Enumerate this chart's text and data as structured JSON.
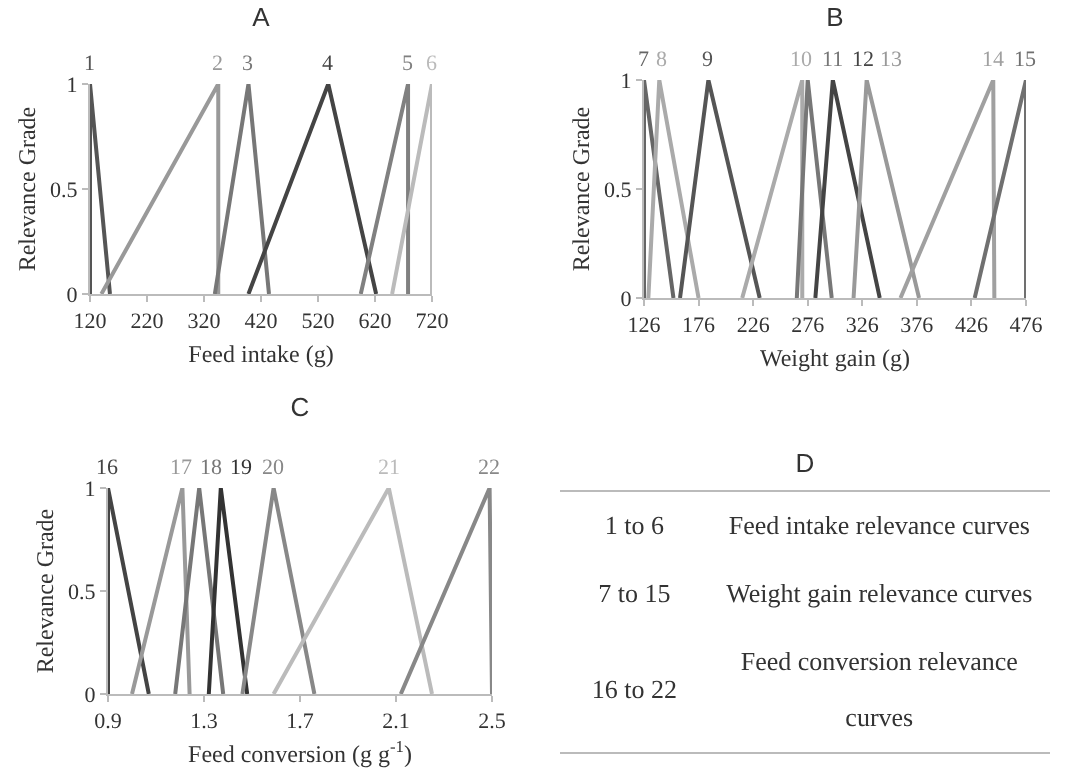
{
  "chart_data": [
    {
      "type": "line",
      "title": "A",
      "xlabel": "Feed intake (g)",
      "ylabel": "Relevance Grade",
      "xlim": [
        120,
        720
      ],
      "xticks": [
        120,
        220,
        320,
        420,
        520,
        620,
        720
      ],
      "ylim": [
        0,
        1
      ],
      "yticks": [
        0,
        0.5,
        1
      ],
      "series": [
        {
          "name": "1",
          "color": "#555555",
          "x": [
            120,
            120,
            155
          ],
          "values": [
            0,
            1,
            0
          ]
        },
        {
          "name": "2",
          "color": "#999999",
          "x": [
            140,
            345,
            345
          ],
          "values": [
            0,
            1,
            0
          ]
        },
        {
          "name": "3",
          "color": "#777777",
          "x": [
            339,
            398,
            434
          ],
          "values": [
            0,
            1,
            0
          ]
        },
        {
          "name": "4",
          "color": "#444444",
          "x": [
            398,
            538,
            622
          ],
          "values": [
            0,
            1,
            0
          ]
        },
        {
          "name": "5",
          "color": "#808080",
          "x": [
            595,
            678,
            678
          ],
          "values": [
            0,
            1,
            0
          ]
        },
        {
          "name": "6",
          "color": "#bbbbbb",
          "x": [
            650,
            720,
            720
          ],
          "values": [
            0,
            1,
            0
          ]
        }
      ]
    },
    {
      "type": "line",
      "title": "B",
      "xlabel": "Weight gain (g)",
      "ylabel": "Relevance Grade",
      "xlim": [
        126,
        476
      ],
      "xticks": [
        126,
        176,
        226,
        276,
        326,
        376,
        426,
        476
      ],
      "ylim": [
        0,
        1
      ],
      "yticks": [
        0,
        0.5,
        1
      ],
      "series": [
        {
          "name": "7",
          "color": "#666666",
          "x": [
            126,
            126,
            153
          ],
          "values": [
            0,
            1,
            0
          ]
        },
        {
          "name": "8",
          "color": "#aaaaaa",
          "x": [
            130,
            140,
            176
          ],
          "values": [
            0,
            1,
            0
          ]
        },
        {
          "name": "9",
          "color": "#555555",
          "x": [
            159,
            185,
            232
          ],
          "values": [
            0,
            1,
            0
          ]
        },
        {
          "name": "10",
          "color": "#aaaaaa",
          "x": [
            216,
            271,
            271
          ],
          "values": [
            0,
            1,
            0
          ]
        },
        {
          "name": "11",
          "color": "#777777",
          "x": [
            266,
            276,
            298
          ],
          "values": [
            0,
            1,
            0
          ]
        },
        {
          "name": "12",
          "color": "#444444",
          "x": [
            283,
            299,
            342
          ],
          "values": [
            0,
            1,
            0
          ]
        },
        {
          "name": "13",
          "color": "#999999",
          "x": [
            318,
            330,
            378
          ],
          "values": [
            0,
            1,
            0
          ]
        },
        {
          "name": "14",
          "color": "#a0a0a0",
          "x": [
            361,
            446,
            447
          ],
          "values": [
            0,
            1,
            0
          ]
        },
        {
          "name": "15",
          "color": "#707070",
          "x": [
            429,
            476,
            476
          ],
          "values": [
            0,
            1,
            0
          ]
        }
      ]
    },
    {
      "type": "line",
      "title": "C",
      "xlabel": "Feed conversion (g g$^{-1}$)",
      "ylabel": "Relevance Grade",
      "xlim": [
        0.9,
        2.5
      ],
      "xticks": [
        0.9,
        1.3,
        1.7,
        2.1,
        2.5
      ],
      "ylim": [
        0,
        1
      ],
      "yticks": [
        0,
        0.5,
        1
      ],
      "series": [
        {
          "name": "16",
          "color": "#444444",
          "x": [
            0.9,
            0.9,
            1.07
          ],
          "values": [
            0,
            1,
            0
          ]
        },
        {
          "name": "17",
          "color": "#999999",
          "x": [
            1.0,
            1.21,
            1.24
          ],
          "values": [
            0,
            1,
            0
          ]
        },
        {
          "name": "18",
          "color": "#777777",
          "x": [
            1.18,
            1.28,
            1.38
          ],
          "values": [
            0,
            1,
            0
          ]
        },
        {
          "name": "19",
          "color": "#333333",
          "x": [
            1.32,
            1.37,
            1.48
          ],
          "values": [
            0,
            1,
            0
          ]
        },
        {
          "name": "20",
          "color": "#888888",
          "x": [
            1.46,
            1.59,
            1.76
          ],
          "values": [
            0,
            1,
            0
          ]
        },
        {
          "name": "21",
          "color": "#bbbbbb",
          "x": [
            1.59,
            2.07,
            2.25
          ],
          "values": [
            0,
            1,
            0
          ]
        },
        {
          "name": "22",
          "color": "#888888",
          "x": [
            2.12,
            2.49,
            2.5
          ],
          "values": [
            0,
            1,
            0
          ]
        }
      ]
    },
    {
      "type": "other",
      "title": "D",
      "annotations": [
        "1 to 6",
        "Feed intake relevance curves",
        "7 to 15",
        "Weight gain relevance curves",
        "16 to 22",
        "Feed conversion relevance curves"
      ]
    }
  ]
}
